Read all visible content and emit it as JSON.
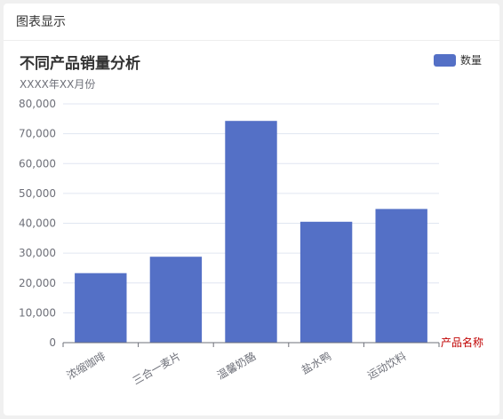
{
  "card": {
    "title": "图表显示"
  },
  "chart_data": {
    "type": "bar",
    "title": "不同产品销量分析",
    "subtitle": "XXXX年XX月份",
    "xlabel": "产品名称",
    "ylabel": "",
    "categories": [
      "浓缩咖啡",
      "三合一麦片",
      "温馨奶酪",
      "盐水鸭",
      "运动饮料"
    ],
    "series": [
      {
        "name": "数量",
        "values": [
          23300,
          28800,
          74300,
          40500,
          44800
        ]
      }
    ],
    "ylim": [
      0,
      80000
    ],
    "yticks": [
      "0",
      "10,000",
      "20,000",
      "30,000",
      "40,000",
      "50,000",
      "60,000",
      "70,000",
      "80,000"
    ],
    "grid": true,
    "legend_position": "top-right",
    "colors": {
      "bar": "#5470c6",
      "xlabel": "#c00000",
      "title": "#333333",
      "axis_text": "#6e7079",
      "grid": "#e0e6f1"
    }
  }
}
